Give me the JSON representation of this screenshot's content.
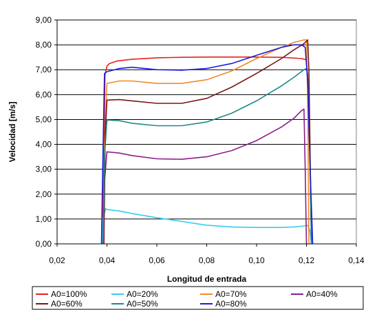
{
  "chart_data": {
    "type": "line",
    "xlabel": "Longitud de entrada",
    "ylabel": "Velocidad [m/s]",
    "xlim": [
      0.02,
      0.14
    ],
    "ylim": [
      0,
      9
    ],
    "x_ticks": [
      0.02,
      0.04,
      0.06,
      0.08,
      0.1,
      0.12,
      0.14
    ],
    "x_tick_labels": [
      "0,02",
      "0,04",
      "0,06",
      "0,08",
      "0,10",
      "0,12",
      "0,14"
    ],
    "y_ticks": [
      0,
      1,
      2,
      3,
      4,
      5,
      6,
      7,
      8,
      9
    ],
    "y_tick_labels": [
      "0,00",
      "1,00",
      "2,00",
      "3,00",
      "4,00",
      "5,00",
      "6,00",
      "7,00",
      "8,00",
      "9,00"
    ],
    "grid": "horizontal",
    "legend_position": "bottom",
    "series": [
      {
        "name": "A0=100%",
        "color": "#e3221b",
        "x": [
          0.0382,
          0.0387,
          0.0392,
          0.04,
          0.041,
          0.044,
          0.05,
          0.06,
          0.07,
          0.08,
          0.09,
          0.1,
          0.11,
          0.118,
          0.12,
          0.121,
          0.1215,
          0.122
        ],
        "y": [
          0.0,
          3.0,
          6.8,
          7.15,
          7.25,
          7.35,
          7.42,
          7.48,
          7.5,
          7.51,
          7.51,
          7.51,
          7.5,
          7.45,
          7.4,
          6.0,
          3.0,
          0.3
        ]
      },
      {
        "name": "A0=20%",
        "color": "#33ccf0",
        "x": [
          0.038,
          0.0385,
          0.0395,
          0.04,
          0.045,
          0.05,
          0.06,
          0.07,
          0.08,
          0.09,
          0.1,
          0.11,
          0.115,
          0.119,
          0.1205,
          0.1215,
          0.122
        ],
        "y": [
          0.0,
          1.05,
          1.42,
          1.38,
          1.32,
          1.22,
          1.05,
          0.9,
          0.75,
          0.68,
          0.66,
          0.66,
          0.68,
          0.72,
          0.75,
          0.5,
          0.0
        ]
      },
      {
        "name": "A0=70%",
        "color": "#f08a24",
        "x": [
          0.0385,
          0.039,
          0.04,
          0.045,
          0.05,
          0.06,
          0.07,
          0.08,
          0.09,
          0.1,
          0.11,
          0.115,
          0.119,
          0.12,
          0.1205,
          0.121
        ],
        "y": [
          0.0,
          4.0,
          6.45,
          6.55,
          6.55,
          6.45,
          6.45,
          6.6,
          6.95,
          7.45,
          7.9,
          8.1,
          8.2,
          8.2,
          6.0,
          0.0
        ]
      },
      {
        "name": "A0=40%",
        "color": "#8b1d8b",
        "x": [
          0.0385,
          0.039,
          0.04,
          0.045,
          0.05,
          0.06,
          0.07,
          0.08,
          0.09,
          0.1,
          0.11,
          0.115,
          0.118,
          0.119,
          0.1195,
          0.12
        ],
        "y": [
          0.0,
          2.5,
          3.7,
          3.65,
          3.55,
          3.42,
          3.4,
          3.5,
          3.75,
          4.15,
          4.7,
          5.05,
          5.35,
          5.42,
          3.0,
          0.0
        ]
      },
      {
        "name": "A0=60%",
        "color": "#7a1414",
        "x": [
          0.0388,
          0.0393,
          0.04,
          0.045,
          0.05,
          0.06,
          0.07,
          0.08,
          0.09,
          0.1,
          0.11,
          0.115,
          0.119,
          0.12,
          0.1205,
          0.121,
          0.1215,
          0.122
        ],
        "y": [
          0.0,
          4.5,
          5.78,
          5.8,
          5.75,
          5.65,
          5.65,
          5.85,
          6.3,
          6.85,
          7.45,
          7.8,
          8.05,
          8.15,
          8.2,
          7.0,
          3.5,
          0.0
        ]
      },
      {
        "name": "A0=50%",
        "color": "#1f8787",
        "x": [
          0.0385,
          0.039,
          0.04,
          0.045,
          0.05,
          0.06,
          0.07,
          0.08,
          0.09,
          0.1,
          0.11,
          0.115,
          0.119,
          0.12,
          0.1205,
          0.1215,
          0.122
        ],
        "y": [
          0.0,
          3.5,
          4.98,
          4.95,
          4.85,
          4.75,
          4.75,
          4.9,
          5.25,
          5.75,
          6.35,
          6.7,
          7.0,
          7.05,
          6.8,
          3.0,
          0.0
        ]
      },
      {
        "name": "A0=80%",
        "color": "#1a1ae0",
        "x": [
          0.0378,
          0.0383,
          0.039,
          0.04,
          0.045,
          0.05,
          0.06,
          0.07,
          0.08,
          0.09,
          0.1,
          0.11,
          0.115,
          0.118,
          0.1195,
          0.1205,
          0.1215,
          0.1225
        ],
        "y": [
          0.0,
          3.0,
          6.85,
          6.92,
          7.05,
          7.1,
          7.0,
          6.98,
          7.05,
          7.25,
          7.58,
          7.9,
          8.0,
          8.0,
          7.9,
          6.5,
          3.0,
          0.0
        ]
      }
    ]
  }
}
